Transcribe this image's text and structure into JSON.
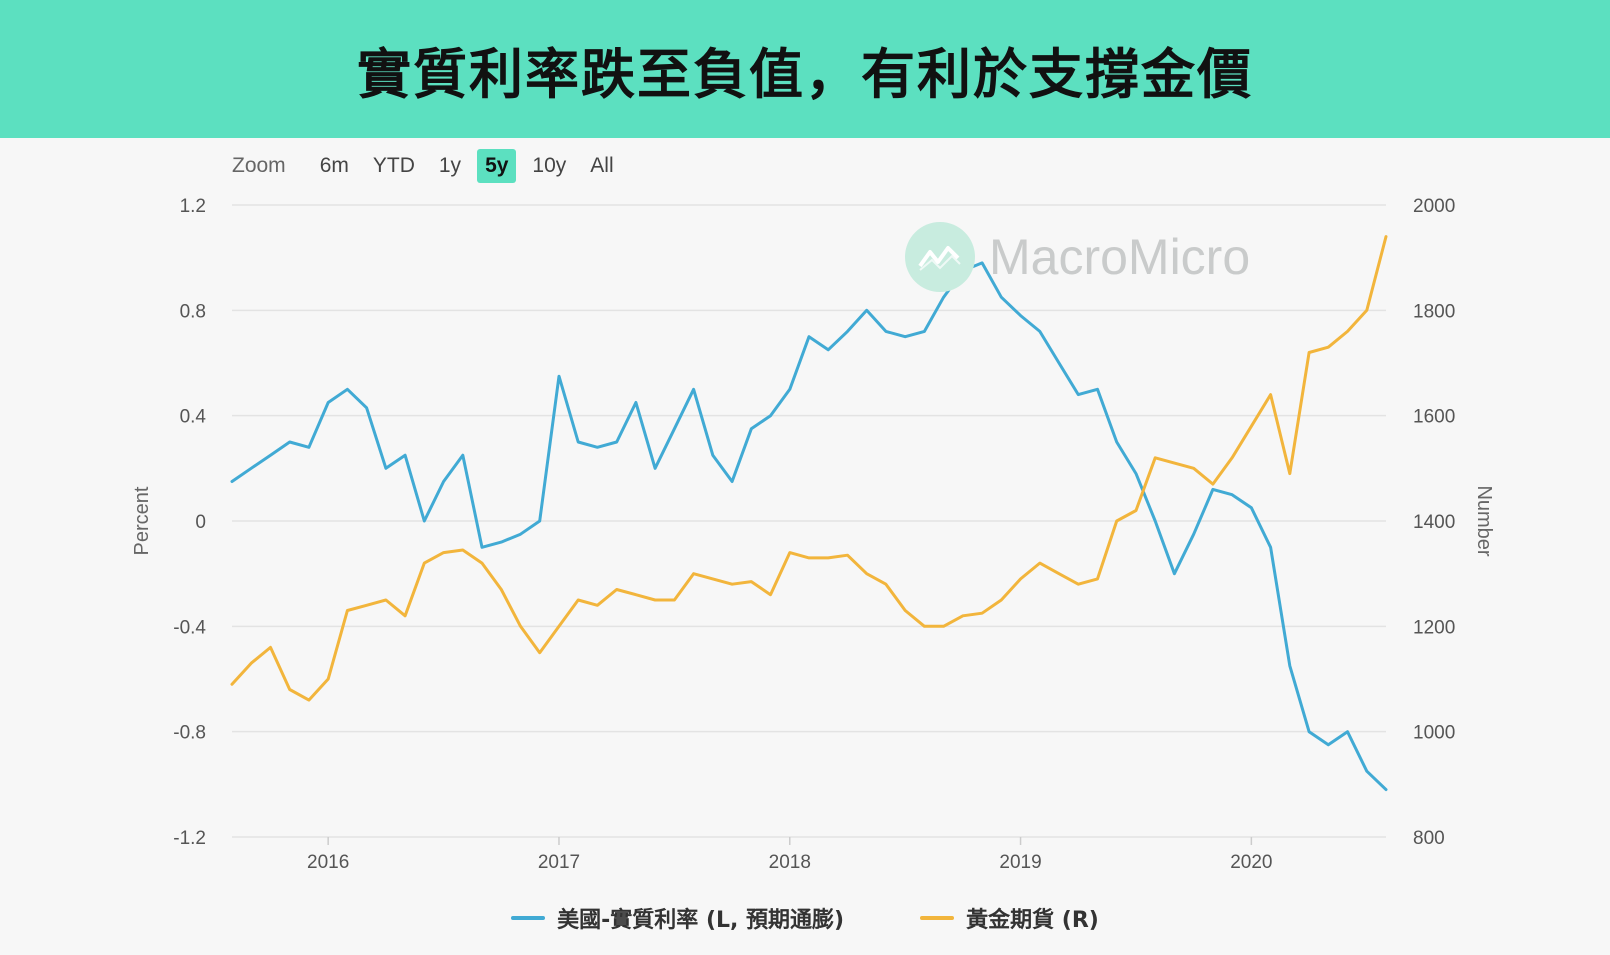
{
  "header": {
    "title": "實質利率跌至負值，有利於支撐金價"
  },
  "zoom": {
    "label": "Zoom",
    "buttons": [
      "6m",
      "YTD",
      "1y",
      "5y",
      "10y",
      "All"
    ],
    "active": "5y"
  },
  "watermark": {
    "text": "MacroMicro",
    "icon": "chart-logo-icon"
  },
  "colors": {
    "banner": "#5ce0c0",
    "real_rate": "#41aad4",
    "gold": "#f2b53c",
    "grid": "#e3e3e3"
  },
  "legend": {
    "real_rate": "美國-實質利率 (L, 預期通膨)",
    "gold": "黃金期貨 (R)"
  },
  "chart_data": {
    "type": "line",
    "ylabel_left": "Percent",
    "ylabel_right": "Number",
    "y_left_ticks": [
      "1.2",
      "0.8",
      "0.4",
      "0",
      "-0.4",
      "-0.8",
      "-1.2"
    ],
    "y_right_ticks": [
      "2000",
      "1800",
      "1600",
      "1400",
      "1200",
      "1000",
      "800"
    ],
    "ylim_left": [
      -1.2,
      1.2
    ],
    "ylim_right": [
      800,
      2000
    ],
    "x_ticks": [
      "2016",
      "2017",
      "2018",
      "2019",
      "2020"
    ],
    "xlim": [
      "2015-08",
      "2020-08"
    ],
    "grid": true,
    "legend_position": "bottom",
    "series": [
      {
        "name": "美國-實質利率 (L, 預期通膨)",
        "axis": "left",
        "points": [
          [
            "2015-08",
            0.15
          ],
          [
            "2015-09",
            0.2
          ],
          [
            "2015-10",
            0.25
          ],
          [
            "2015-11",
            0.3
          ],
          [
            "2015-12",
            0.28
          ],
          [
            "2016-01",
            0.45
          ],
          [
            "2016-02",
            0.5
          ],
          [
            "2016-03",
            0.43
          ],
          [
            "2016-04",
            0.2
          ],
          [
            "2016-05",
            0.25
          ],
          [
            "2016-06",
            0.0
          ],
          [
            "2016-07",
            0.15
          ],
          [
            "2016-08",
            0.25
          ],
          [
            "2016-09",
            -0.1
          ],
          [
            "2016-10",
            -0.08
          ],
          [
            "2016-11",
            -0.05
          ],
          [
            "2016-12",
            0.0
          ],
          [
            "2017-01",
            0.55
          ],
          [
            "2017-02",
            0.3
          ],
          [
            "2017-03",
            0.28
          ],
          [
            "2017-04",
            0.3
          ],
          [
            "2017-05",
            0.45
          ],
          [
            "2017-06",
            0.2
          ],
          [
            "2017-07",
            0.35
          ],
          [
            "2017-08",
            0.5
          ],
          [
            "2017-09",
            0.25
          ],
          [
            "2017-10",
            0.15
          ],
          [
            "2017-11",
            0.35
          ],
          [
            "2017-12",
            0.4
          ],
          [
            "2018-01",
            0.5
          ],
          [
            "2018-02",
            0.7
          ],
          [
            "2018-03",
            0.65
          ],
          [
            "2018-04",
            0.72
          ],
          [
            "2018-05",
            0.8
          ],
          [
            "2018-06",
            0.72
          ],
          [
            "2018-07",
            0.7
          ],
          [
            "2018-08",
            0.72
          ],
          [
            "2018-09",
            0.85
          ],
          [
            "2018-10",
            0.95
          ],
          [
            "2018-11",
            0.98
          ],
          [
            "2018-12",
            0.85
          ],
          [
            "2019-01",
            0.78
          ],
          [
            "2019-02",
            0.72
          ],
          [
            "2019-03",
            0.6
          ],
          [
            "2019-04",
            0.48
          ],
          [
            "2019-05",
            0.5
          ],
          [
            "2019-06",
            0.3
          ],
          [
            "2019-07",
            0.18
          ],
          [
            "2019-08",
            0.0
          ],
          [
            "2019-09",
            -0.2
          ],
          [
            "2019-10",
            -0.05
          ],
          [
            "2019-11",
            0.12
          ],
          [
            "2019-12",
            0.1
          ],
          [
            "2020-01",
            0.05
          ],
          [
            "2020-02",
            -0.1
          ],
          [
            "2020-03",
            -0.55
          ],
          [
            "2020-04",
            -0.8
          ],
          [
            "2020-05",
            -0.85
          ],
          [
            "2020-06",
            -0.8
          ],
          [
            "2020-07",
            -0.95
          ],
          [
            "2020-08",
            -1.02
          ]
        ]
      },
      {
        "name": "黃金期貨 (R)",
        "axis": "right",
        "points": [
          [
            "2015-08",
            1090
          ],
          [
            "2015-09",
            1130
          ],
          [
            "2015-10",
            1160
          ],
          [
            "2015-11",
            1080
          ],
          [
            "2015-12",
            1060
          ],
          [
            "2016-01",
            1100
          ],
          [
            "2016-02",
            1230
          ],
          [
            "2016-03",
            1240
          ],
          [
            "2016-04",
            1250
          ],
          [
            "2016-05",
            1220
          ],
          [
            "2016-06",
            1320
          ],
          [
            "2016-07",
            1340
          ],
          [
            "2016-08",
            1345
          ],
          [
            "2016-09",
            1320
          ],
          [
            "2016-10",
            1270
          ],
          [
            "2016-11",
            1200
          ],
          [
            "2016-12",
            1150
          ],
          [
            "2017-01",
            1200
          ],
          [
            "2017-02",
            1250
          ],
          [
            "2017-03",
            1240
          ],
          [
            "2017-04",
            1270
          ],
          [
            "2017-05",
            1260
          ],
          [
            "2017-06",
            1250
          ],
          [
            "2017-07",
            1250
          ],
          [
            "2017-08",
            1300
          ],
          [
            "2017-09",
            1290
          ],
          [
            "2017-10",
            1280
          ],
          [
            "2017-11",
            1285
          ],
          [
            "2017-12",
            1260
          ],
          [
            "2018-01",
            1340
          ],
          [
            "2018-02",
            1330
          ],
          [
            "2018-03",
            1330
          ],
          [
            "2018-04",
            1335
          ],
          [
            "2018-05",
            1300
          ],
          [
            "2018-06",
            1280
          ],
          [
            "2018-07",
            1230
          ],
          [
            "2018-08",
            1200
          ],
          [
            "2018-09",
            1200
          ],
          [
            "2018-10",
            1220
          ],
          [
            "2018-11",
            1225
          ],
          [
            "2018-12",
            1250
          ],
          [
            "2019-01",
            1290
          ],
          [
            "2019-02",
            1320
          ],
          [
            "2019-03",
            1300
          ],
          [
            "2019-04",
            1280
          ],
          [
            "2019-05",
            1290
          ],
          [
            "2019-06",
            1400
          ],
          [
            "2019-07",
            1420
          ],
          [
            "2019-08",
            1520
          ],
          [
            "2019-09",
            1510
          ],
          [
            "2019-10",
            1500
          ],
          [
            "2019-11",
            1470
          ],
          [
            "2019-12",
            1520
          ],
          [
            "2020-01",
            1580
          ],
          [
            "2020-02",
            1640
          ],
          [
            "2020-03",
            1490
          ],
          [
            "2020-04",
            1720
          ],
          [
            "2020-05",
            1730
          ],
          [
            "2020-06",
            1760
          ],
          [
            "2020-07",
            1800
          ],
          [
            "2020-08",
            1940
          ]
        ]
      }
    ]
  }
}
